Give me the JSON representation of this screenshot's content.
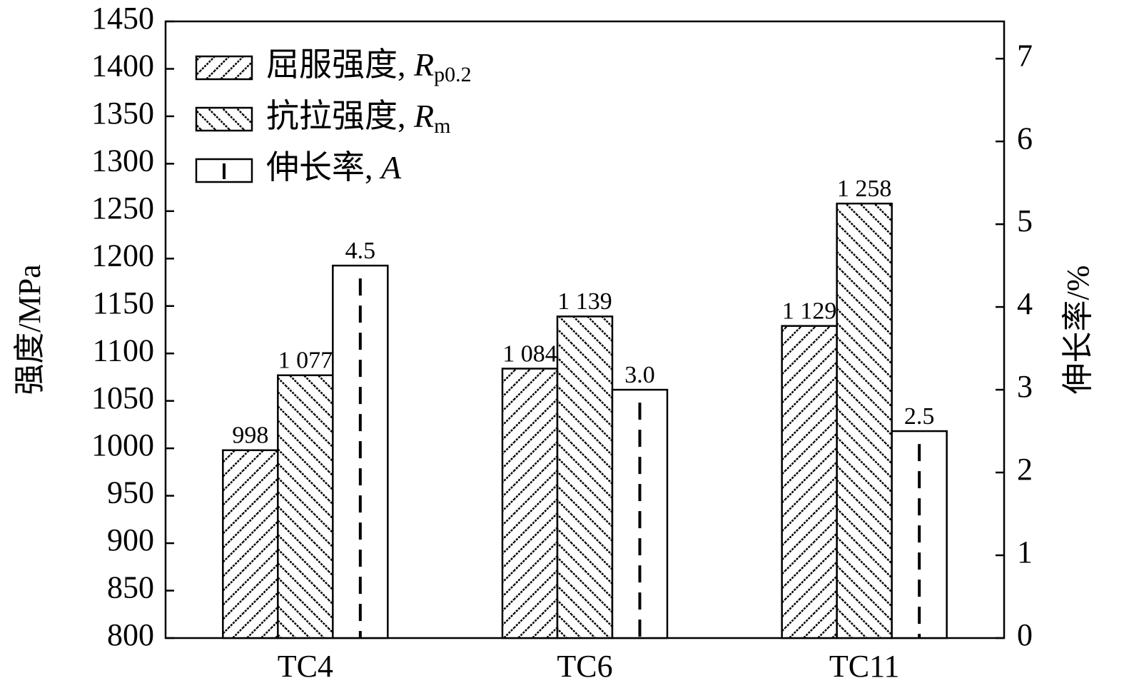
{
  "chart_data": {
    "type": "bar",
    "y_label": "强度/MPa",
    "y2_label": "伸长率/%",
    "categories": [
      "TC4",
      "TC6",
      "TC11"
    ],
    "series": [
      {
        "name": "屈服强度, Rp0.2",
        "color": "#000000",
        "hatch": "diagonal-up",
        "values": [
          998,
          1084,
          1129
        ],
        "value_labels": [
          "998",
          "1 084",
          "1 129"
        ]
      },
      {
        "name": "抗拉强度, Rm",
        "color": "#000000",
        "hatch": "diagonal-down",
        "values": [
          1077,
          1139,
          1258
        ],
        "value_labels": [
          "1 077",
          "1 139",
          "1 258"
        ]
      },
      {
        "name": "伸长率, A",
        "color": "#000000",
        "hatch": "vertical-dash",
        "axis": "y2",
        "values": [
          4.5,
          3.0,
          2.5
        ],
        "value_labels": [
          "4.5",
          "3.0",
          "2.5"
        ]
      }
    ],
    "ylim": [
      800,
      1450
    ],
    "yticks": [
      800,
      850,
      900,
      950,
      1000,
      1050,
      1100,
      1150,
      1200,
      1250,
      1300,
      1350,
      1400,
      1450
    ],
    "y2lim": [
      0,
      7.45
    ],
    "y2ticks": [
      0,
      1,
      2,
      3,
      4,
      5,
      6,
      7
    ],
    "legend": "upper-left"
  }
}
